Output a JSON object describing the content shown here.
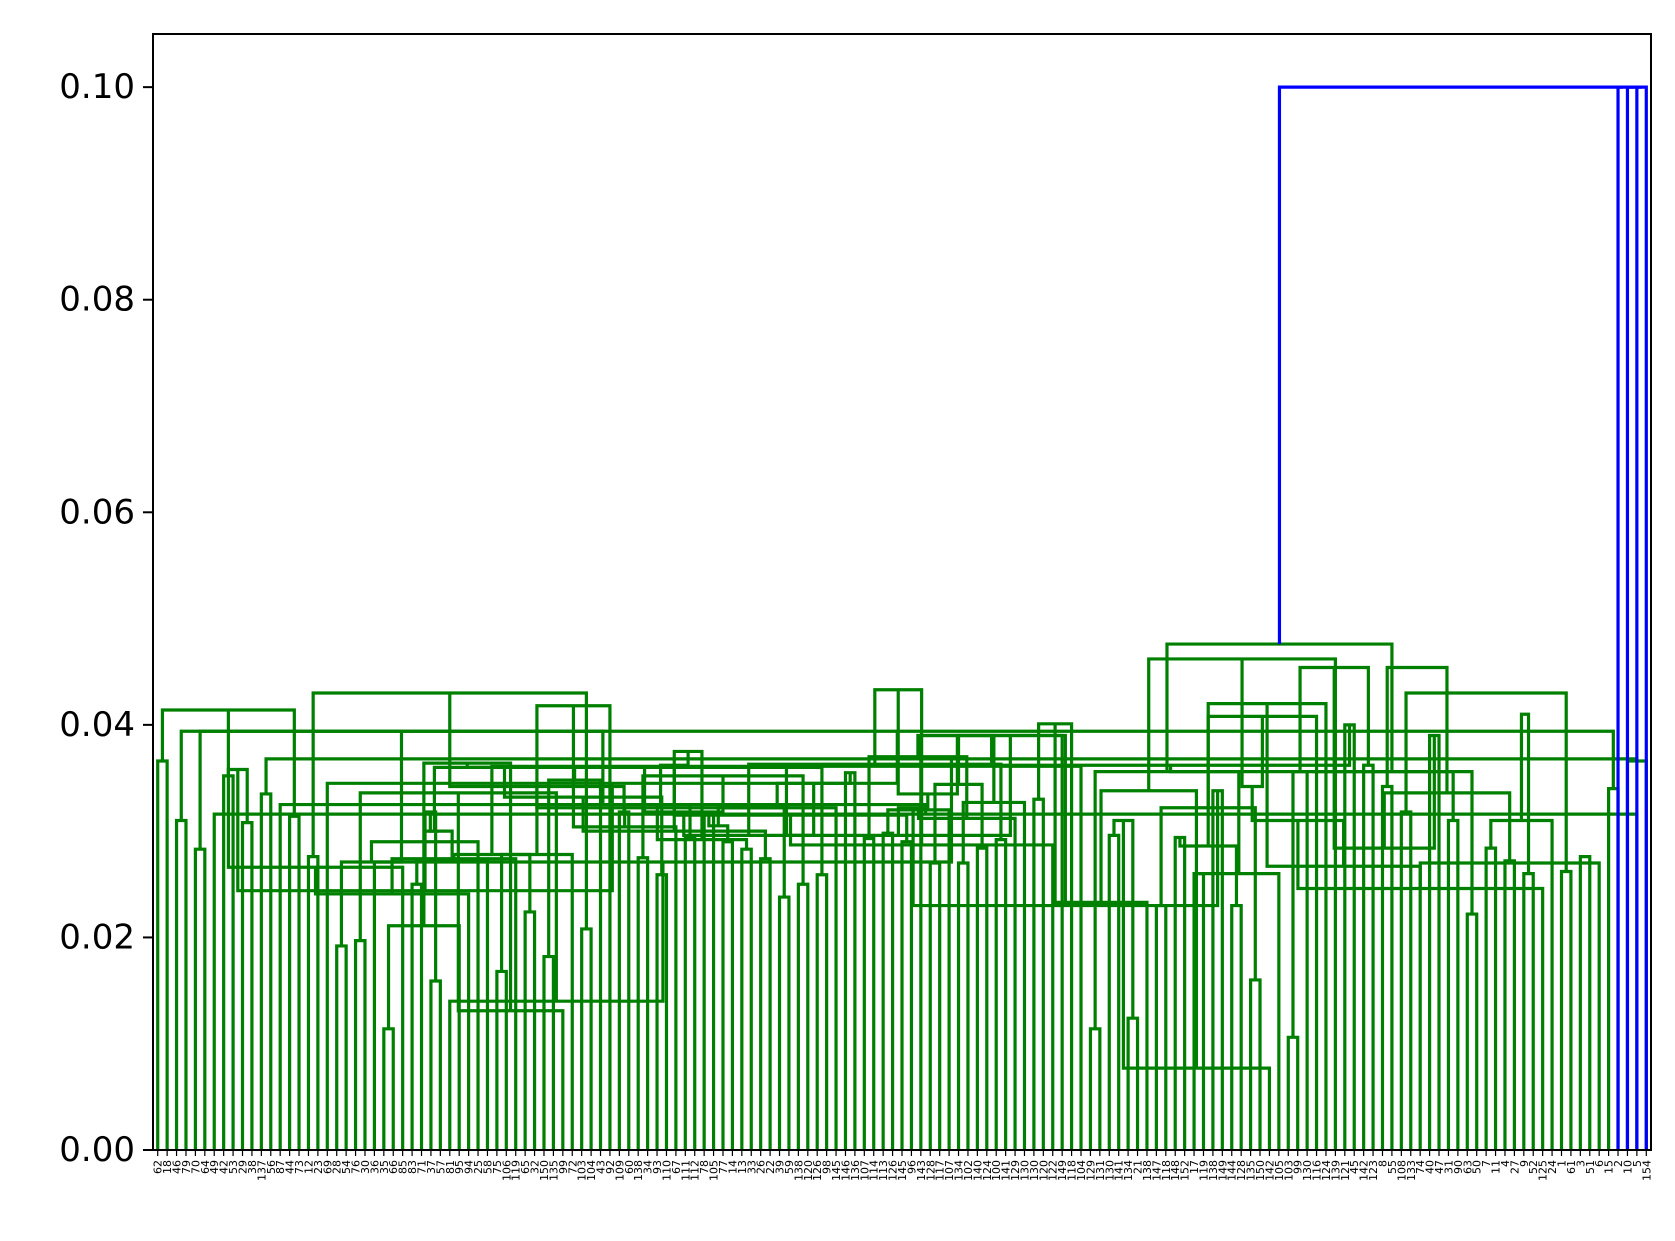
{
  "chart_data": {
    "type": "dendrogram",
    "title": "",
    "xlabel": "",
    "ylabel": "",
    "ylim": [
      0,
      0.105
    ],
    "yticks": [
      0.0,
      0.02,
      0.04,
      0.06,
      0.08,
      0.1
    ],
    "ytick_labels": [
      "0.00",
      "0.02",
      "0.04",
      "0.06",
      "0.08",
      "0.10"
    ],
    "leaf_count": 154,
    "leaf_font_note": "leaf labels are integer indices, rotated vertically",
    "leaf_labels": [
      "62",
      "18",
      "46",
      "79",
      "70",
      "64",
      "49",
      "42",
      "53",
      "29",
      "38",
      "137",
      "56",
      "87",
      "44",
      "73",
      "12",
      "23",
      "69",
      "28",
      "54",
      "76",
      "30",
      "36",
      "35",
      "66",
      "85",
      "83",
      "71",
      "37",
      "57",
      "81",
      "95",
      "94",
      "25",
      "58",
      "75",
      "106",
      "119",
      "65",
      "32",
      "150",
      "135",
      "99",
      "72",
      "103",
      "104",
      "43",
      "92",
      "109",
      "60",
      "138",
      "34",
      "93",
      "110",
      "67",
      "111",
      "112",
      "78",
      "105",
      "77",
      "14",
      "13",
      "33",
      "26",
      "22",
      "39",
      "59",
      "138",
      "120",
      "126",
      "98",
      "145",
      "146",
      "136",
      "107",
      "114",
      "113",
      "126",
      "145",
      "96",
      "143",
      "128",
      "117",
      "107",
      "134",
      "102",
      "140",
      "124",
      "100",
      "141",
      "129",
      "130",
      "130",
      "120",
      "122",
      "149",
      "118",
      "104",
      "129",
      "131",
      "130",
      "141",
      "134",
      "21",
      "138",
      "147",
      "118",
      "148",
      "152",
      "17",
      "119",
      "138",
      "149",
      "144",
      "128",
      "135",
      "150",
      "142",
      "105",
      "103",
      "99",
      "130",
      "116",
      "124",
      "139",
      "121",
      "45",
      "142",
      "123",
      "8",
      "55",
      "108",
      "133",
      "74",
      "40",
      "47",
      "31",
      "90",
      "63",
      "50",
      "7",
      "11",
      "4",
      "27",
      "9",
      "52",
      "125",
      "24",
      "1",
      "61",
      "3",
      "51",
      "6",
      "15",
      "2",
      "10",
      "5",
      "154"
    ],
    "palette": {
      "cluster": "#008000",
      "link_above_threshold": "#0000ff"
    },
    "color_threshold": 0.07,
    "merges": [
      {
        "i": 0,
        "j": 1,
        "h": 0.0366
      },
      {
        "i": 2,
        "j": 3,
        "h": 0.031
      },
      {
        "i": 154,
        "j": 155,
        "h": 0.034
      },
      {
        "i": 4,
        "j": 5,
        "h": 0.0283
      },
      {
        "i": 157,
        "j": 6,
        "h": 0.0316
      },
      {
        "i": 156,
        "j": 158,
        "h": 0.0366
      },
      {
        "i": 7,
        "j": 8,
        "h": 0.0352
      },
      {
        "i": 9,
        "j": 10,
        "h": 0.0308
      },
      {
        "i": 160,
        "j": 161,
        "h": 0.0394
      },
      {
        "i": 11,
        "j": 12,
        "h": 0.0335
      },
      {
        "i": 163,
        "j": 13,
        "h": 0.0325
      },
      {
        "i": 14,
        "j": 15,
        "h": 0.0314
      },
      {
        "i": 16,
        "j": 17,
        "h": 0.0276
      },
      {
        "i": 165,
        "j": 166,
        "h": 0.0358
      },
      {
        "i": 167,
        "j": 18,
        "h": 0.0345
      },
      {
        "i": 164,
        "j": 168,
        "h": 0.0368
      },
      {
        "i": 162,
        "j": 169,
        "h": 0.0394
      },
      {
        "i": 159,
        "j": 170,
        "h": 0.0414
      },
      {
        "i": 19,
        "j": 20,
        "h": 0.0192
      },
      {
        "i": 21,
        "j": 22,
        "h": 0.0197
      },
      {
        "i": 172,
        "j": 173,
        "h": 0.0244
      },
      {
        "i": 174,
        "j": 23,
        "h": 0.0271
      },
      {
        "i": 24,
        "j": 25,
        "h": 0.0114
      },
      {
        "i": 176,
        "j": 26,
        "h": 0.0266
      },
      {
        "i": 175,
        "j": 177,
        "h": 0.0271
      },
      {
        "i": 27,
        "j": 28,
        "h": 0.025
      },
      {
        "i": 29,
        "j": 30,
        "h": 0.0159
      },
      {
        "i": 180,
        "j": 31,
        "h": 0.014
      },
      {
        "i": 181,
        "j": 32,
        "h": 0.0211
      },
      {
        "i": 182,
        "j": 33,
        "h": 0.0241
      },
      {
        "i": 183,
        "j": 34,
        "h": 0.029
      },
      {
        "i": 184,
        "j": 35,
        "h": 0.0273
      },
      {
        "i": 179,
        "j": 185,
        "h": 0.0318
      },
      {
        "i": 178,
        "j": 186,
        "h": 0.0336
      },
      {
        "i": 36,
        "j": 37,
        "h": 0.0168
      },
      {
        "i": 188,
        "j": 38,
        "h": 0.0274
      },
      {
        "i": 39,
        "j": 40,
        "h": 0.0224
      },
      {
        "i": 189,
        "j": 190,
        "h": 0.03
      },
      {
        "i": 41,
        "j": 42,
        "h": 0.0182
      },
      {
        "i": 192,
        "j": 43,
        "h": 0.0131
      },
      {
        "i": 193,
        "j": 44,
        "h": 0.0278
      },
      {
        "i": 45,
        "j": 46,
        "h": 0.0208
      },
      {
        "i": 194,
        "j": 195,
        "h": 0.0278
      },
      {
        "i": 191,
        "j": 196,
        "h": 0.03
      },
      {
        "i": 197,
        "j": 47,
        "h": 0.0348
      },
      {
        "i": 187,
        "j": 198,
        "h": 0.0364
      },
      {
        "i": 48,
        "j": 199,
        "h": 0.0418
      },
      {
        "i": 171,
        "j": 200,
        "h": 0.043
      },
      {
        "i": 49,
        "j": 50,
        "h": 0.0318
      },
      {
        "i": 51,
        "j": 52,
        "h": 0.0275
      },
      {
        "i": 202,
        "j": 203,
        "h": 0.036
      },
      {
        "i": 53,
        "j": 54,
        "h": 0.0259
      },
      {
        "i": 205,
        "j": 55,
        "h": 0.0304
      },
      {
        "i": 56,
        "j": 57,
        "h": 0.0293
      },
      {
        "i": 206,
        "j": 207,
        "h": 0.0342
      },
      {
        "i": 58,
        "j": 59,
        "h": 0.0316
      },
      {
        "i": 60,
        "j": 61,
        "h": 0.029
      },
      {
        "i": 209,
        "j": 210,
        "h": 0.0332
      },
      {
        "i": 62,
        "j": 63,
        "h": 0.0283
      },
      {
        "i": 211,
        "j": 212,
        "h": 0.0325
      },
      {
        "i": 64,
        "j": 65,
        "h": 0.0274
      },
      {
        "i": 66,
        "j": 67,
        "h": 0.0238
      },
      {
        "i": 214,
        "j": 215,
        "h": 0.0305
      },
      {
        "i": 68,
        "j": 69,
        "h": 0.025
      },
      {
        "i": 70,
        "j": 71,
        "h": 0.0259
      },
      {
        "i": 217,
        "j": 218,
        "h": 0.0292
      },
      {
        "i": 216,
        "j": 219,
        "h": 0.03
      },
      {
        "i": 213,
        "j": 220,
        "h": 0.0322
      },
      {
        "i": 221,
        "j": 72,
        "h": 0.0322
      },
      {
        "i": 208,
        "j": 222,
        "h": 0.0352
      },
      {
        "i": 204,
        "j": 223,
        "h": 0.036
      },
      {
        "i": 73,
        "j": 74,
        "h": 0.0355
      },
      {
        "i": 224,
        "j": 225,
        "h": 0.0375
      },
      {
        "i": 75,
        "j": 76,
        "h": 0.0293
      },
      {
        "i": 77,
        "j": 78,
        "h": 0.0298
      },
      {
        "i": 79,
        "j": 80,
        "h": 0.029
      },
      {
        "i": 228,
        "j": 229,
        "h": 0.0318
      },
      {
        "i": 227,
        "j": 230,
        "h": 0.0345
      },
      {
        "i": 226,
        "j": 231,
        "h": 0.0362
      },
      {
        "i": 82,
        "j": 83,
        "h": 0.027
      },
      {
        "i": 233,
        "j": 84,
        "h": 0.032
      },
      {
        "i": 85,
        "j": 86,
        "h": 0.027
      },
      {
        "i": 87,
        "j": 88,
        "h": 0.0284
      },
      {
        "i": 235,
        "j": 236,
        "h": 0.0296
      },
      {
        "i": 234,
        "j": 237,
        "h": 0.0315
      },
      {
        "i": 89,
        "j": 90,
        "h": 0.0292
      },
      {
        "i": 239,
        "j": 91,
        "h": 0.0312
      },
      {
        "i": 240,
        "j": 92,
        "h": 0.0327
      },
      {
        "i": 238,
        "j": 241,
        "h": 0.0344
      },
      {
        "i": 93,
        "j": 94,
        "h": 0.033
      },
      {
        "i": 243,
        "j": 95,
        "h": 0.0287
      },
      {
        "i": 242,
        "j": 244,
        "h": 0.0363
      },
      {
        "i": 232,
        "j": 245,
        "h": 0.037
      },
      {
        "i": 81,
        "j": 246,
        "h": 0.039
      },
      {
        "i": 247,
        "j": 96,
        "h": 0.039
      },
      {
        "i": 248,
        "j": 97,
        "h": 0.0401
      },
      {
        "i": 201,
        "j": 98,
        "h": 0.0361
      },
      {
        "i": 250,
        "j": 249,
        "h": 0.0433
      },
      {
        "i": 99,
        "j": 100,
        "h": 0.0114
      },
      {
        "i": 101,
        "j": 102,
        "h": 0.0296
      },
      {
        "i": 103,
        "j": 104,
        "h": 0.0124
      },
      {
        "i": 254,
        "j": 105,
        "h": 0.0233
      },
      {
        "i": 253,
        "j": 255,
        "h": 0.0296
      },
      {
        "i": 252,
        "j": 256,
        "h": 0.0335
      },
      {
        "i": 106,
        "j": 107,
        "h": 0.023
      },
      {
        "i": 108,
        "j": 109,
        "h": 0.0294
      },
      {
        "i": 258,
        "j": 259,
        "h": 0.031
      },
      {
        "i": 110,
        "j": 111,
        "h": 0.026
      },
      {
        "i": 112,
        "j": 113,
        "h": 0.0338
      },
      {
        "i": 261,
        "j": 262,
        "h": 0.0322
      },
      {
        "i": 114,
        "j": 115,
        "h": 0.023
      },
      {
        "i": 116,
        "j": 117,
        "h": 0.016
      },
      {
        "i": 265,
        "j": 118,
        "h": 0.0077
      },
      {
        "i": 266,
        "j": 119,
        "h": 0.026
      },
      {
        "i": 120,
        "j": 121,
        "h": 0.0106
      },
      {
        "i": 267,
        "j": 268,
        "h": 0.023
      },
      {
        "i": 264,
        "j": 269,
        "h": 0.0286
      },
      {
        "i": 263,
        "j": 270,
        "h": 0.0322
      },
      {
        "i": 260,
        "j": 271,
        "h": 0.0338
      },
      {
        "i": 257,
        "j": 272,
        "h": 0.0356
      },
      {
        "i": 273,
        "j": 122,
        "h": 0.0356
      },
      {
        "i": 251,
        "j": 274,
        "h": 0.039
      },
      {
        "i": 275,
        "j": 123,
        "h": 0.0408
      },
      {
        "i": 276,
        "j": 124,
        "h": 0.042
      },
      {
        "i": 277,
        "j": 125,
        "h": 0.0462
      },
      {
        "i": 126,
        "j": 127,
        "h": 0.04
      },
      {
        "i": 128,
        "j": 129,
        "h": 0.0362
      },
      {
        "i": 130,
        "j": 131,
        "h": 0.0342
      },
      {
        "i": 132,
        "j": 133,
        "h": 0.0318
      },
      {
        "i": 282,
        "j": 134,
        "h": 0.0267
      },
      {
        "i": 281,
        "j": 283,
        "h": 0.0342
      },
      {
        "i": 280,
        "j": 284,
        "h": 0.0362
      },
      {
        "i": 279,
        "j": 285,
        "h": 0.0454
      },
      {
        "i": 135,
        "j": 136,
        "h": 0.039
      },
      {
        "i": 137,
        "j": 138,
        "h": 0.031
      },
      {
        "i": 139,
        "j": 140,
        "h": 0.0222
      },
      {
        "i": 288,
        "j": 289,
        "h": 0.031
      },
      {
        "i": 141,
        "j": 142,
        "h": 0.0284
      },
      {
        "i": 143,
        "j": 144,
        "h": 0.0272
      },
      {
        "i": 291,
        "j": 292,
        "h": 0.0284
      },
      {
        "i": 290,
        "j": 293,
        "h": 0.0356
      },
      {
        "i": 145,
        "j": 146,
        "h": 0.026
      },
      {
        "i": 295,
        "j": 147,
        "h": 0.0246
      },
      {
        "i": 296,
        "j": 148,
        "h": 0.031
      },
      {
        "i": 149,
        "j": 150,
        "h": 0.0262
      },
      {
        "i": 297,
        "j": 298,
        "h": 0.0336
      },
      {
        "i": 294,
        "j": 299,
        "h": 0.0356
      },
      {
        "i": 151,
        "j": 152,
        "h": 0.0276
      },
      {
        "i": 301,
        "j": 153,
        "h": 0.027
      },
      {
        "i": 300,
        "j": 302,
        "h": 0.041
      },
      {
        "i": 287,
        "j": 303,
        "h": 0.043
      },
      {
        "i": 286,
        "j": 304,
        "h": 0.0454
      },
      {
        "i": 278,
        "j": 305,
        "h": 0.0476
      }
    ]
  }
}
